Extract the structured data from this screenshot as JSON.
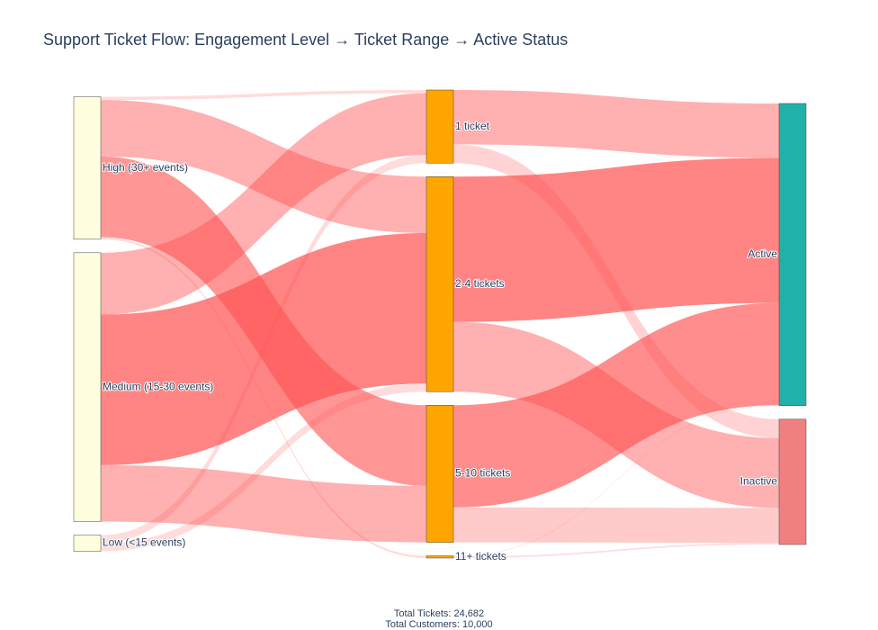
{
  "chart_data": {
    "type": "sankey",
    "title": "Support Ticket Flow: Engagement Level → Ticket Range → Active Status",
    "nodes": [
      {
        "id": "high",
        "label": "High (30+ events)",
        "column": 0,
        "color": "#ffffe0"
      },
      {
        "id": "medium",
        "label": "Medium (15-30 events)",
        "column": 0,
        "color": "#ffffe0"
      },
      {
        "id": "low",
        "label": "Low (<15 events)",
        "column": 0,
        "color": "#ffffe0"
      },
      {
        "id": "t1",
        "label": "1 ticket",
        "column": 1,
        "color": "#ffa500"
      },
      {
        "id": "t2",
        "label": "2-4 tickets",
        "column": 1,
        "color": "#ffa500"
      },
      {
        "id": "t3",
        "label": "5-10 tickets",
        "column": 1,
        "color": "#ffa500"
      },
      {
        "id": "t4",
        "label": "11+ tickets",
        "column": 1,
        "color": "#ffa500"
      },
      {
        "id": "active",
        "label": "Active",
        "column": 2,
        "color": "#20b2aa"
      },
      {
        "id": "inactive",
        "label": "Inactive",
        "column": 2,
        "color": "#f08080"
      }
    ],
    "links": [
      {
        "source": "high",
        "target": "t1",
        "value": 60,
        "color": "rgba(255,80,80,0.20)"
      },
      {
        "source": "high",
        "target": "t2",
        "value": 1050,
        "color": "rgba(255,80,80,0.45)"
      },
      {
        "source": "high",
        "target": "t3",
        "value": 1500,
        "color": "rgba(255,80,80,0.60)"
      },
      {
        "source": "high",
        "target": "t4",
        "value": 40,
        "color": "rgba(255,80,80,0.20)"
      },
      {
        "source": "medium",
        "target": "t1",
        "value": 1150,
        "color": "rgba(255,80,80,0.45)"
      },
      {
        "source": "medium",
        "target": "t2",
        "value": 2800,
        "color": "rgba(255,80,80,0.70)"
      },
      {
        "source": "medium",
        "target": "t3",
        "value": 1050,
        "color": "rgba(255,80,80,0.45)"
      },
      {
        "source": "low",
        "target": "t1",
        "value": 150,
        "color": "rgba(255,80,80,0.20)"
      },
      {
        "source": "low",
        "target": "t2",
        "value": 150,
        "color": "rgba(255,80,80,0.20)"
      },
      {
        "source": "t1",
        "target": "active",
        "value": 1010,
        "color": "rgba(255,80,80,0.45)"
      },
      {
        "source": "t1",
        "target": "inactive",
        "value": 350,
        "color": "rgba(255,80,80,0.25)"
      },
      {
        "source": "t2",
        "target": "active",
        "value": 2700,
        "color": "rgba(255,80,80,0.70)"
      },
      {
        "source": "t2",
        "target": "inactive",
        "value": 1300,
        "color": "rgba(255,80,80,0.45)"
      },
      {
        "source": "t3",
        "target": "active",
        "value": 1900,
        "color": "rgba(255,80,80,0.65)"
      },
      {
        "source": "t3",
        "target": "inactive",
        "value": 650,
        "color": "rgba(255,80,80,0.30)"
      },
      {
        "source": "t4",
        "target": "active",
        "value": 10,
        "color": "rgba(255,80,80,0.20)"
      },
      {
        "source": "t4",
        "target": "inactive",
        "value": 30,
        "color": "rgba(255,80,80,0.20)"
      }
    ],
    "annotations": [
      "Total Tickets: 24,682",
      "Total Customers: 10,000"
    ]
  }
}
